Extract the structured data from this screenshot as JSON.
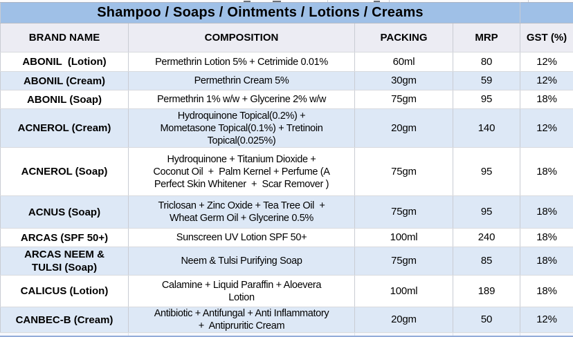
{
  "title": "Shampoo / Soaps / Ointments / Lotions / Creams",
  "columns": [
    "BRAND NAME",
    "COMPOSITION",
    "PACKING",
    "MRP",
    "GST (%)"
  ],
  "rows": [
    {
      "brand": "ABONIL  (Lotion)",
      "composition": "Permethrin Lotion 5% + Cetrimide 0.01%",
      "packing": "60ml",
      "mrp": "80",
      "gst": "12%"
    },
    {
      "brand": "ABONIL (Cream)",
      "composition": "Permethrin Cream 5%",
      "packing": "30gm",
      "mrp": "59",
      "gst": "12%"
    },
    {
      "brand": "ABONIL (Soap)",
      "composition": "Permethrin 1% w/w + Glycerine 2% w/w",
      "packing": "75gm",
      "mrp": "95",
      "gst": "18%"
    },
    {
      "brand": "ACNEROL (Cream)",
      "composition": "Hydroquinone Topical(0.2%) +\nMometasone Topical(0.1%) + Tretinoin\nTopical(0.025%)",
      "packing": "20gm",
      "mrp": "140",
      "gst": "12%"
    },
    {
      "brand": "ACNEROL (Soap)",
      "composition": "Hydroquinone + Titanium Dioxide +\nCoconut Oil  +  Palm Kernel + Perfume (A\nPerfect Skin Whitener  +  Scar Remover )",
      "packing": "75gm",
      "mrp": "95",
      "gst": "18%"
    },
    {
      "brand": "ACNUS (Soap)",
      "composition": "Triclosan + Zinc Oxide + Tea Tree Oil  +\nWheat Germ Oil + Glycerine 0.5%",
      "packing": "75gm",
      "mrp": "95",
      "gst": "18%"
    },
    {
      "brand": "ARCAS (SPF 50+)",
      "composition": "Sunscreen UV Lotion SPF 50+",
      "packing": "100ml",
      "mrp": "240",
      "gst": "18%"
    },
    {
      "brand": "ARCAS NEEM &\nTULSI (Soap)",
      "composition": "Neem & Tulsi Purifying Soap",
      "packing": "75gm",
      "mrp": "85",
      "gst": "18%"
    },
    {
      "brand": "CALICUS (Lotion)",
      "composition": "Calamine + Liquid Paraffin + Aloevera\nLotion",
      "packing": "100ml",
      "mrp": "189",
      "gst": "18%"
    },
    {
      "brand": "CANBEC-B (Cream)",
      "composition": "Antibiotic + Antifungal + Anti Inflammatory\n+  Antipruritic Cream",
      "packing": "20gm",
      "mrp": "50",
      "gst": "12%"
    }
  ],
  "colors": {
    "title_bar": "#9FC0E7",
    "header_row": "#ECECF3",
    "alt_row": "#DDE8F6",
    "row": "#FFFFFF",
    "bottom_line": "#93ACD9",
    "text": "#000000"
  }
}
